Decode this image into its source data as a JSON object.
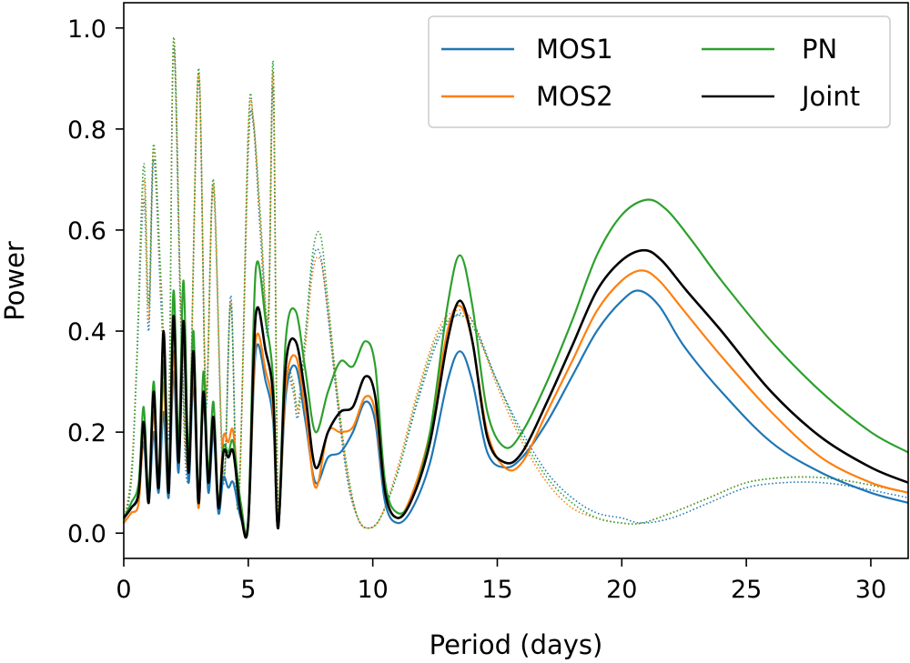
{
  "chart_data": {
    "type": "line",
    "title": "",
    "xlabel": "Period (days)",
    "ylabel": "Power",
    "xlim": [
      0,
      31.5
    ],
    "ylim": [
      -0.05,
      1.05
    ],
    "x_ticks": [
      0,
      5,
      10,
      15,
      20,
      25,
      30
    ],
    "x_tick_labels": [
      "0",
      "5",
      "10",
      "15",
      "20",
      "25",
      "30"
    ],
    "y_ticks": [
      0.0,
      0.2,
      0.4,
      0.6,
      0.8,
      1.0
    ],
    "y_tick_labels": [
      "0.0",
      "0.2",
      "0.4",
      "0.6",
      "0.8",
      "1.0"
    ],
    "grid": false,
    "legend": {
      "position": "top-right",
      "columns": 2,
      "entries": [
        {
          "label": "MOS1",
          "color": "#1f77b4"
        },
        {
          "label": "MOS2",
          "color": "#ff7f0e"
        },
        {
          "label": "PN",
          "color": "#2ca02c"
        },
        {
          "label": "Joint",
          "color": "#000000"
        }
      ]
    },
    "series": [
      {
        "name": "MOS1 (dotted)",
        "color": "#1f77b4",
        "style": "dotted",
        "x": [
          0.0,
          0.3,
          0.5,
          0.8,
          1.0,
          1.2,
          1.5,
          1.8,
          2.0,
          2.3,
          2.6,
          3.0,
          3.3,
          3.6,
          4.0,
          4.3,
          4.6,
          5.0,
          5.2,
          5.5,
          5.8,
          6.0,
          6.2,
          6.5,
          6.8,
          7.0,
          7.3,
          7.6,
          7.9,
          8.2,
          8.6,
          9.0,
          9.4,
          9.8,
          10.3,
          11.0,
          11.8,
          12.6,
          13.3,
          14.0,
          15.0,
          16.0,
          17.0,
          18.0,
          19.0,
          20.0,
          20.8,
          22.0,
          23.5,
          25.0,
          26.5,
          28.0,
          29.5,
          31.5
        ],
        "y": [
          0.02,
          0.1,
          0.3,
          0.66,
          0.4,
          0.74,
          0.45,
          0.2,
          0.96,
          0.4,
          0.12,
          0.9,
          0.25,
          0.68,
          0.1,
          0.47,
          0.05,
          0.75,
          0.81,
          0.58,
          0.4,
          0.88,
          0.05,
          0.3,
          0.28,
          0.23,
          0.38,
          0.54,
          0.55,
          0.43,
          0.25,
          0.1,
          0.03,
          0.01,
          0.03,
          0.12,
          0.26,
          0.38,
          0.43,
          0.42,
          0.3,
          0.2,
          0.12,
          0.07,
          0.04,
          0.03,
          0.02,
          0.03,
          0.06,
          0.09,
          0.1,
          0.1,
          0.09,
          0.07
        ]
      },
      {
        "name": "MOS2 (dotted)",
        "color": "#ff7f0e",
        "style": "dotted",
        "x": [
          0.0,
          0.3,
          0.5,
          0.8,
          1.0,
          1.2,
          1.5,
          1.8,
          2.0,
          2.3,
          2.6,
          3.0,
          3.3,
          3.6,
          4.0,
          4.3,
          4.6,
          5.0,
          5.2,
          5.5,
          5.8,
          6.0,
          6.2,
          6.5,
          6.8,
          7.0,
          7.3,
          7.6,
          7.9,
          8.2,
          8.6,
          9.0,
          9.4,
          9.8,
          10.3,
          11.0,
          11.8,
          12.6,
          13.3,
          14.0,
          15.0,
          16.0,
          17.0,
          18.0,
          19.0,
          20.0,
          20.8,
          22.0,
          23.5,
          25.0,
          26.5,
          28.0,
          29.5,
          31.5
        ],
        "y": [
          0.02,
          0.12,
          0.32,
          0.7,
          0.42,
          0.76,
          0.48,
          0.22,
          0.97,
          0.42,
          0.14,
          0.91,
          0.27,
          0.69,
          0.11,
          0.46,
          0.05,
          0.78,
          0.82,
          0.6,
          0.42,
          0.91,
          0.05,
          0.3,
          0.29,
          0.24,
          0.37,
          0.52,
          0.54,
          0.44,
          0.26,
          0.11,
          0.03,
          0.01,
          0.03,
          0.13,
          0.28,
          0.4,
          0.44,
          0.42,
          0.29,
          0.18,
          0.1,
          0.05,
          0.03,
          0.02,
          0.02,
          0.04,
          0.07,
          0.1,
          0.11,
          0.11,
          0.1,
          0.08
        ]
      },
      {
        "name": "PN (dotted)",
        "color": "#2ca02c",
        "style": "dotted",
        "x": [
          0.0,
          0.3,
          0.5,
          0.8,
          1.0,
          1.2,
          1.5,
          1.8,
          2.0,
          2.3,
          2.6,
          3.0,
          3.3,
          3.6,
          4.0,
          4.3,
          4.6,
          5.0,
          5.2,
          5.5,
          5.8,
          6.0,
          6.2,
          6.5,
          6.8,
          7.0,
          7.3,
          7.6,
          7.9,
          8.2,
          8.6,
          9.0,
          9.4,
          9.8,
          10.3,
          11.0,
          11.8,
          12.6,
          13.3,
          14.0,
          15.0,
          16.0,
          17.0,
          18.0,
          19.0,
          20.0,
          20.8,
          22.0,
          23.5,
          25.0,
          26.5,
          28.0,
          29.5,
          31.5
        ],
        "y": [
          0.02,
          0.11,
          0.31,
          0.73,
          0.45,
          0.77,
          0.5,
          0.23,
          0.98,
          0.44,
          0.15,
          0.92,
          0.28,
          0.7,
          0.12,
          0.45,
          0.05,
          0.8,
          0.82,
          0.62,
          0.43,
          0.93,
          0.05,
          0.31,
          0.3,
          0.25,
          0.4,
          0.56,
          0.59,
          0.46,
          0.27,
          0.12,
          0.03,
          0.01,
          0.03,
          0.12,
          0.27,
          0.39,
          0.43,
          0.41,
          0.3,
          0.19,
          0.11,
          0.06,
          0.03,
          0.02,
          0.02,
          0.04,
          0.07,
          0.1,
          0.11,
          0.11,
          0.1,
          0.08
        ]
      },
      {
        "name": "MOS1",
        "color": "#1f77b4",
        "style": "solid",
        "x": [
          0.0,
          0.3,
          0.6,
          0.8,
          1.0,
          1.2,
          1.4,
          1.6,
          1.8,
          2.0,
          2.2,
          2.4,
          2.6,
          2.8,
          3.0,
          3.2,
          3.4,
          3.6,
          3.8,
          4.0,
          4.2,
          4.4,
          4.7,
          5.0,
          5.3,
          5.7,
          6.0,
          6.2,
          6.5,
          6.9,
          7.3,
          7.7,
          8.2,
          8.7,
          9.2,
          9.7,
          10.1,
          10.5,
          11.0,
          11.6,
          12.3,
          13.0,
          13.5,
          14.0,
          14.6,
          15.3,
          16.0,
          17.0,
          18.0,
          19.0,
          20.0,
          20.7,
          21.5,
          22.5,
          24.0,
          26.0,
          28.0,
          30.0,
          31.5
        ],
        "y": [
          0.03,
          0.05,
          0.08,
          0.18,
          0.06,
          0.2,
          0.08,
          0.24,
          0.07,
          0.32,
          0.12,
          0.38,
          0.1,
          0.3,
          0.05,
          0.26,
          0.08,
          0.2,
          0.04,
          0.11,
          0.09,
          0.1,
          0.03,
          0.02,
          0.36,
          0.3,
          0.22,
          0.01,
          0.27,
          0.33,
          0.22,
          0.1,
          0.15,
          0.16,
          0.2,
          0.26,
          0.22,
          0.06,
          0.02,
          0.05,
          0.14,
          0.3,
          0.36,
          0.3,
          0.16,
          0.13,
          0.15,
          0.22,
          0.31,
          0.4,
          0.46,
          0.48,
          0.45,
          0.37,
          0.28,
          0.18,
          0.12,
          0.08,
          0.06
        ]
      },
      {
        "name": "MOS2",
        "color": "#ff7f0e",
        "style": "solid",
        "x": [
          0.0,
          0.3,
          0.6,
          0.8,
          1.0,
          1.2,
          1.4,
          1.6,
          1.8,
          2.0,
          2.2,
          2.4,
          2.6,
          2.8,
          3.0,
          3.2,
          3.4,
          3.6,
          3.8,
          4.0,
          4.2,
          4.4,
          4.7,
          5.0,
          5.3,
          5.7,
          6.0,
          6.2,
          6.5,
          6.9,
          7.3,
          7.7,
          8.2,
          8.7,
          9.2,
          9.7,
          10.1,
          10.5,
          11.0,
          11.6,
          12.3,
          13.0,
          13.5,
          14.0,
          14.6,
          15.3,
          16.0,
          17.0,
          18.0,
          19.0,
          20.0,
          20.8,
          21.5,
          22.5,
          24.0,
          26.0,
          28.0,
          30.0,
          31.5
        ],
        "y": [
          0.02,
          0.04,
          0.06,
          0.2,
          0.07,
          0.24,
          0.09,
          0.3,
          0.08,
          0.36,
          0.14,
          0.4,
          0.12,
          0.33,
          0.05,
          0.28,
          0.1,
          0.22,
          0.05,
          0.19,
          0.18,
          0.2,
          0.04,
          0.02,
          0.38,
          0.32,
          0.24,
          0.01,
          0.29,
          0.35,
          0.24,
          0.09,
          0.2,
          0.2,
          0.21,
          0.27,
          0.24,
          0.08,
          0.03,
          0.08,
          0.2,
          0.4,
          0.45,
          0.38,
          0.2,
          0.13,
          0.14,
          0.24,
          0.34,
          0.44,
          0.5,
          0.52,
          0.5,
          0.44,
          0.35,
          0.24,
          0.15,
          0.1,
          0.08
        ]
      },
      {
        "name": "PN",
        "color": "#2ca02c",
        "style": "solid",
        "x": [
          0.0,
          0.3,
          0.6,
          0.8,
          1.0,
          1.2,
          1.4,
          1.6,
          1.8,
          2.0,
          2.2,
          2.4,
          2.6,
          2.8,
          3.0,
          3.2,
          3.4,
          3.6,
          3.8,
          4.0,
          4.2,
          4.4,
          4.7,
          5.0,
          5.3,
          5.7,
          6.0,
          6.2,
          6.5,
          6.9,
          7.3,
          7.7,
          8.2,
          8.7,
          9.2,
          9.7,
          10.1,
          10.5,
          11.0,
          11.6,
          12.3,
          13.0,
          13.5,
          14.0,
          14.6,
          15.3,
          16.0,
          17.0,
          18.0,
          19.0,
          20.0,
          21.0,
          21.8,
          22.8,
          24.0,
          26.0,
          28.0,
          30.0,
          31.5
        ],
        "y": [
          0.03,
          0.06,
          0.1,
          0.25,
          0.08,
          0.3,
          0.1,
          0.34,
          0.1,
          0.48,
          0.18,
          0.5,
          0.15,
          0.4,
          0.07,
          0.32,
          0.12,
          0.26,
          0.06,
          0.17,
          0.16,
          0.18,
          0.06,
          0.03,
          0.52,
          0.42,
          0.3,
          0.01,
          0.38,
          0.44,
          0.32,
          0.2,
          0.28,
          0.34,
          0.33,
          0.38,
          0.33,
          0.1,
          0.04,
          0.07,
          0.2,
          0.45,
          0.55,
          0.45,
          0.24,
          0.17,
          0.2,
          0.3,
          0.42,
          0.55,
          0.63,
          0.66,
          0.64,
          0.58,
          0.5,
          0.38,
          0.28,
          0.2,
          0.16
        ]
      },
      {
        "name": "Joint",
        "color": "#000000",
        "style": "solid",
        "x": [
          0.0,
          0.3,
          0.6,
          0.8,
          1.0,
          1.2,
          1.4,
          1.6,
          1.8,
          2.0,
          2.2,
          2.4,
          2.6,
          2.8,
          3.0,
          3.2,
          3.4,
          3.6,
          3.8,
          4.0,
          4.2,
          4.4,
          4.7,
          5.0,
          5.3,
          5.7,
          6.0,
          6.2,
          6.5,
          6.9,
          7.3,
          7.7,
          8.2,
          8.7,
          9.2,
          9.7,
          10.1,
          10.5,
          11.0,
          11.6,
          12.3,
          13.0,
          13.5,
          14.0,
          14.6,
          15.3,
          16.0,
          17.0,
          18.0,
          19.0,
          20.0,
          20.9,
          21.6,
          22.6,
          24.0,
          26.0,
          28.0,
          30.0,
          31.5
        ],
        "y": [
          0.03,
          0.05,
          0.08,
          0.22,
          0.06,
          0.28,
          0.09,
          0.4,
          0.08,
          0.43,
          0.14,
          0.42,
          0.12,
          0.36,
          0.06,
          0.28,
          0.1,
          0.23,
          0.05,
          0.16,
          0.15,
          0.16,
          0.04,
          0.02,
          0.43,
          0.36,
          0.27,
          0.01,
          0.33,
          0.38,
          0.27,
          0.13,
          0.2,
          0.24,
          0.25,
          0.31,
          0.27,
          0.08,
          0.03,
          0.07,
          0.18,
          0.38,
          0.46,
          0.38,
          0.19,
          0.14,
          0.16,
          0.26,
          0.37,
          0.48,
          0.54,
          0.56,
          0.54,
          0.48,
          0.4,
          0.28,
          0.19,
          0.13,
          0.1
        ]
      }
    ]
  }
}
